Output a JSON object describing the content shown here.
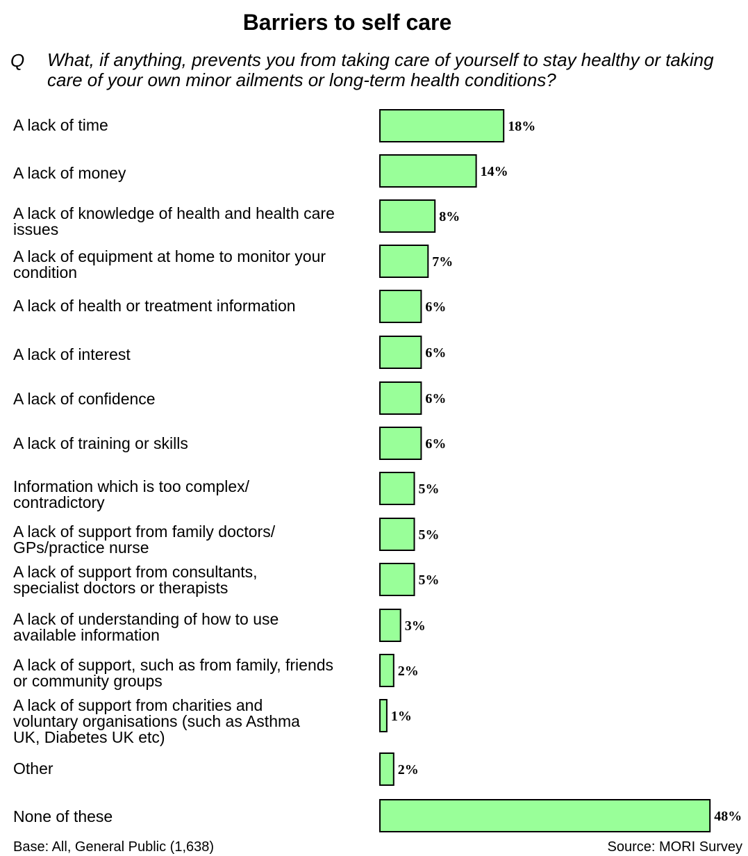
{
  "chart_data": {
    "type": "bar",
    "orientation": "horizontal",
    "title": "Barriers to self care",
    "question_marker": "Q",
    "question": "What, if anything, prevents you from taking care of yourself to stay healthy or taking care of your own minor ailments or long-term health conditions?",
    "categories": [
      "A lack of time",
      "A lack of money",
      "A lack of knowledge of health and health care issues",
      "A lack of equipment at home to monitor your condition",
      "A lack of health or treatment information",
      "A lack of interest",
      "A lack of confidence",
      "A lack of training or skills",
      "Information which is too complex/ contradictory",
      "A lack of support from family doctors/ GPs/practice nurse",
      "A lack of support from consultants, specialist doctors or therapists",
      "A lack of understanding of how to use available information",
      "A lack of support, such as from family, friends or community groups",
      "A lack of support  from charities and voluntary organisations (such as Asthma UK, Diabetes UK etc)",
      "Other",
      "None of these"
    ],
    "values": [
      18,
      14,
      8,
      7,
      6,
      6,
      6,
      6,
      5,
      5,
      5,
      3,
      2,
      1,
      2,
      48
    ],
    "value_labels": [
      "18%",
      "14%",
      "8%",
      "7%",
      "6%",
      "6%",
      "6%",
      "6%",
      "5%",
      "5%",
      "5%",
      "3%",
      "2%",
      "1%",
      "2%",
      "48%"
    ],
    "xlim": [
      0,
      48
    ],
    "grid": false,
    "bar_color": "#99ff99",
    "bar_edge_color": "#000000",
    "base_note": "Base: All, General Public (1,638)",
    "source": "Source: MORI Survey"
  }
}
